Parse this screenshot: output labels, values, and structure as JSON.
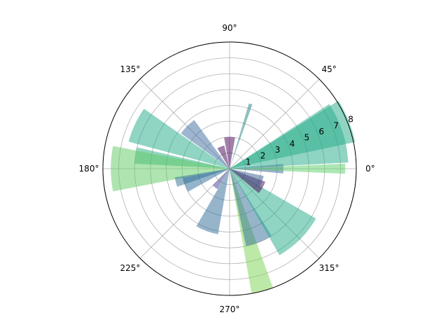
{
  "chart_data": {
    "type": "polar-bar",
    "title": "",
    "angular_axis": {
      "unit": "degrees",
      "ticks": [
        0,
        45,
        90,
        135,
        180,
        225,
        270,
        315
      ],
      "tick_labels": [
        "0°",
        "45°",
        "90°",
        "135°",
        "180°",
        "225°",
        "270°",
        "315°"
      ]
    },
    "radial_axis": {
      "range": [
        0,
        8
      ],
      "ticks": [
        1,
        2,
        3,
        4,
        5,
        6,
        7,
        8
      ],
      "tick_labels": [
        "1",
        "2",
        "3",
        "4",
        "5",
        "6",
        "7",
        "8"
      ],
      "label_angle_deg": 22.5
    },
    "grid": true,
    "opacity": 0.5,
    "bars": [
      {
        "theta_deg": 0,
        "width_deg": 10,
        "r": 3.4,
        "color": "#3a5fa0"
      },
      {
        "theta_deg": 0,
        "width_deg": 5,
        "r": 7.3,
        "color": "#5ad06a"
      },
      {
        "theta_deg": 18,
        "width_deg": 30,
        "r": 7.5,
        "color": "#22aa88"
      },
      {
        "theta_deg": 22,
        "width_deg": 20,
        "r": 8.1,
        "color": "#22aa88"
      },
      {
        "theta_deg": 72,
        "width_deg": 3,
        "r": 4.3,
        "color": "#1f7f7f"
      },
      {
        "theta_deg": 90,
        "width_deg": 20,
        "r": 2.0,
        "color": "#440154"
      },
      {
        "theta_deg": 112,
        "width_deg": 18,
        "r": 1.5,
        "color": "#440154"
      },
      {
        "theta_deg": 135,
        "width_deg": 18,
        "r": 3.8,
        "color": "#3b6ba0"
      },
      {
        "theta_deg": 155,
        "width_deg": 20,
        "r": 6.6,
        "color": "#22aa88"
      },
      {
        "theta_deg": 172,
        "width_deg": 10,
        "r": 6.0,
        "color": "#28ae80"
      },
      {
        "theta_deg": 180,
        "width_deg": 22,
        "r": 7.5,
        "color": "#5ec962"
      },
      {
        "theta_deg": 194,
        "width_deg": 10,
        "r": 3.5,
        "color": "#2a7090"
      },
      {
        "theta_deg": 200,
        "width_deg": 18,
        "r": 3.0,
        "color": "#2c6a98"
      },
      {
        "theta_deg": 232,
        "width_deg": 15,
        "r": 1.5,
        "color": "#404090"
      },
      {
        "theta_deg": 250,
        "width_deg": 20,
        "r": 4.2,
        "color": "#2f6b96"
      },
      {
        "theta_deg": 285,
        "width_deg": 10,
        "r": 8.0,
        "color": "#7ad151"
      },
      {
        "theta_deg": 292,
        "width_deg": 20,
        "r": 5.0,
        "color": "#2f6b96"
      },
      {
        "theta_deg": 315,
        "width_deg": 30,
        "r": 6.3,
        "color": "#22aa88"
      },
      {
        "theta_deg": 330,
        "width_deg": 20,
        "r": 2.4,
        "color": "#440154"
      },
      {
        "theta_deg": 338,
        "width_deg": 20,
        "r": 2.2,
        "color": "#355f8d"
      }
    ]
  }
}
